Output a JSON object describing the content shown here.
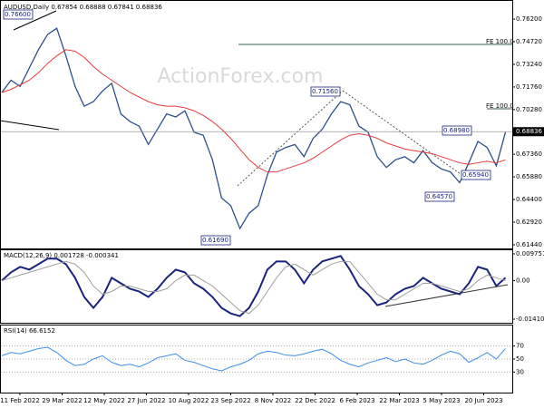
{
  "chart_data": [
    {
      "type": "line",
      "title": "AUDUSD,Daily  0.67854 0.68888 0.67841 0.68836",
      "watermark": "ActionForex.com",
      "series": [
        {
          "name": "AUDUSD",
          "color": "#2c4f8c",
          "values": [
            0.714,
            0.722,
            0.718,
            0.73,
            0.742,
            0.752,
            0.756,
            0.738,
            0.718,
            0.705,
            0.708,
            0.715,
            0.72,
            0.7,
            0.695,
            0.692,
            0.68,
            0.69,
            0.7,
            0.698,
            0.702,
            0.688,
            0.686,
            0.67,
            0.645,
            0.64,
            0.625,
            0.635,
            0.64,
            0.66,
            0.675,
            0.678,
            0.68,
            0.672,
            0.684,
            0.69,
            0.7,
            0.708,
            0.706,
            0.692,
            0.688,
            0.672,
            0.665,
            0.67,
            0.672,
            0.668,
            0.676,
            0.668,
            0.664,
            0.662,
            0.655,
            0.668,
            0.682,
            0.678,
            0.666,
            0.688
          ]
        },
        {
          "name": "MA",
          "color": "#e8393a",
          "values": [
            0.714,
            0.716,
            0.719,
            0.722,
            0.727,
            0.733,
            0.738,
            0.742,
            0.741,
            0.737,
            0.731,
            0.726,
            0.722,
            0.718,
            0.714,
            0.711,
            0.708,
            0.706,
            0.705,
            0.705,
            0.704,
            0.702,
            0.699,
            0.695,
            0.69,
            0.684,
            0.677,
            0.67,
            0.665,
            0.662,
            0.662,
            0.664,
            0.666,
            0.668,
            0.671,
            0.675,
            0.679,
            0.683,
            0.686,
            0.687,
            0.686,
            0.684,
            0.681,
            0.679,
            0.677,
            0.676,
            0.675,
            0.674,
            0.672,
            0.67,
            0.668,
            0.667,
            0.668,
            0.669,
            0.668,
            0.67
          ]
        }
      ],
      "ylim": [
        0.7733,
        0.612
      ],
      "yticks": [
        {
          "value": 0.762,
          "label": "0.76200"
        },
        {
          "value": 0.7472,
          "label": "0.74720"
        },
        {
          "value": 0.7324,
          "label": "0.73240"
        },
        {
          "value": 0.7176,
          "label": "0.71760"
        },
        {
          "value": 0.7028,
          "label": "0.70280"
        },
        {
          "value": 0.6736,
          "label": "0.67360"
        },
        {
          "value": 0.6588,
          "label": "0.65880"
        },
        {
          "value": 0.644,
          "label": "0.64400"
        },
        {
          "value": 0.6292,
          "label": "0.62920"
        },
        {
          "value": 0.6144,
          "label": "0.61440"
        }
      ],
      "last_price": {
        "value": 0.68836,
        "label": "0.68836"
      },
      "annotations": [
        "0.76600",
        "0.71560",
        "0.68980",
        "0.65940",
        "0.64570",
        "0.61690",
        "FE 100.0",
        "FE 100.0"
      ],
      "xticks": [
        "11 Feb 2022",
        "29 Mar 2022",
        "12 May 2022",
        "27 Jun 2022",
        "10 Aug 2022",
        "23 Sep 2022",
        "8 Nov 2022",
        "22 Dec 2022",
        "6 Feb 2023",
        "22 Mar 2023",
        "5 May 2023",
        "20 Jun 2023"
      ]
    },
    {
      "type": "line",
      "title": "MACD(12,26,9) 0.001728 -0.000341",
      "series": [
        {
          "name": "MACD",
          "color": "#1a237e",
          "values": [
            0.0,
            0.003,
            0.005,
            0.004,
            0.006,
            0.008,
            0.008,
            0.006,
            0.001,
            -0.006,
            -0.01,
            -0.006,
            0.001,
            -0.001,
            -0.003,
            -0.004,
            -0.006,
            -0.003,
            0.001,
            0.004,
            0.003,
            -0.001,
            -0.003,
            -0.006,
            -0.01,
            -0.012,
            -0.013,
            -0.01,
            -0.004,
            0.004,
            0.007,
            0.007,
            0.004,
            -0.001,
            0.004,
            0.007,
            0.008,
            0.009,
            0.004,
            -0.002,
            -0.005,
            -0.009,
            -0.008,
            -0.005,
            -0.003,
            -0.002,
            0.001,
            -0.001,
            -0.003,
            -0.004,
            -0.005,
            -0.001,
            0.005,
            0.004,
            -0.002,
            0.001
          ]
        },
        {
          "name": "Signal",
          "color": "#9e9e9e",
          "values": [
            0.0,
            0.001,
            0.002,
            0.003,
            0.004,
            0.005,
            0.006,
            0.007,
            0.006,
            0.003,
            -0.002,
            -0.005,
            -0.004,
            -0.002,
            -0.002,
            -0.003,
            -0.004,
            -0.004,
            -0.003,
            0.0,
            0.002,
            0.002,
            0.0,
            -0.002,
            -0.005,
            -0.008,
            -0.011,
            -0.012,
            -0.009,
            -0.004,
            0.001,
            0.005,
            0.006,
            0.004,
            0.002,
            0.004,
            0.006,
            0.007,
            0.007,
            0.003,
            -0.001,
            -0.005,
            -0.007,
            -0.007,
            -0.005,
            -0.003,
            -0.001,
            -0.001,
            -0.002,
            -0.003,
            -0.004,
            -0.003,
            0.0,
            0.002,
            0.001,
            0.0
          ]
        }
      ],
      "ylim": [
        0.01108,
        -0.01576
      ],
      "yticks": [
        0.009751,
        {
          "value": 0,
          "label": "0.00"
        },
        -0.014107
      ]
    },
    {
      "type": "line",
      "title": "RSI(14) 66.6152",
      "series": [
        {
          "name": "RSI",
          "color": "#3a8ee6",
          "values": [
            55,
            60,
            58,
            62,
            66,
            68,
            60,
            48,
            40,
            42,
            50,
            55,
            45,
            40,
            42,
            38,
            44,
            52,
            55,
            58,
            48,
            45,
            40,
            35,
            32,
            38,
            42,
            48,
            58,
            62,
            60,
            56,
            55,
            58,
            62,
            65,
            58,
            48,
            42,
            38,
            44,
            48,
            52,
            46,
            50,
            44,
            42,
            48,
            56,
            62,
            58,
            45,
            52,
            60,
            50,
            66
          ]
        }
      ],
      "ylim": [
        100,
        0
      ],
      "yticks": [
        70,
        50,
        30
      ]
    }
  ]
}
